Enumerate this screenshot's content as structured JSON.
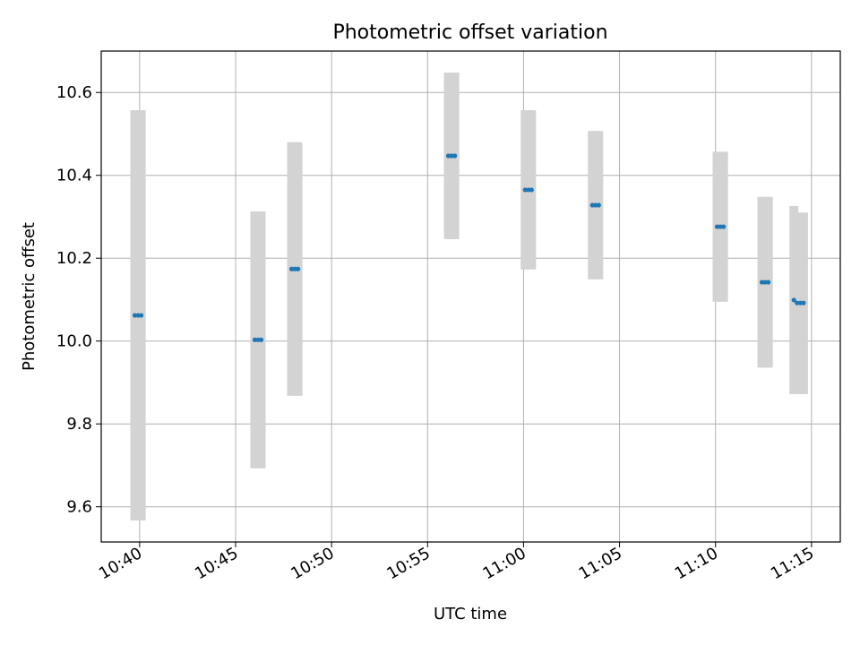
{
  "chart_data": {
    "type": "scatter",
    "title": "Photometric offset variation",
    "xlabel": "UTC time",
    "ylabel": "Photometric offset",
    "xlim": [
      "10:38:00",
      "11:16:30"
    ],
    "ylim": [
      9.515,
      10.7
    ],
    "grid": true,
    "x_ticks": [
      "10:40",
      "10:45",
      "10:50",
      "10:55",
      "11:00",
      "11:05",
      "11:10",
      "11:15"
    ],
    "y_ticks": [
      "9.6",
      "9.8",
      "10.0",
      "10.2",
      "10.4",
      "10.6"
    ],
    "y_tick_values": [
      9.6,
      9.8,
      10.0,
      10.2,
      10.4,
      10.6
    ],
    "error_band_color": "#d3d3d3",
    "point_color": "#1f77b4",
    "groups": [
      {
        "times": [
          "10:39:45",
          "10:39:55",
          "10:40:05"
        ],
        "offset": 10.062,
        "low": 9.567,
        "high": 10.557
      },
      {
        "times": [
          "10:46:00",
          "10:46:10",
          "10:46:20"
        ],
        "offset": 10.003,
        "low": 9.693,
        "high": 10.313
      },
      {
        "times": [
          "10:47:55",
          "10:48:05",
          "10:48:15"
        ],
        "offset": 10.174,
        "low": 9.868,
        "high": 10.48
      },
      {
        "times": [
          "10:56:05",
          "10:56:15",
          "10:56:25"
        ],
        "offset": 10.447,
        "low": 10.246,
        "high": 10.648
      },
      {
        "times": [
          "11:00:05",
          "11:00:15",
          "11:00:25"
        ],
        "offset": 10.365,
        "low": 10.173,
        "high": 10.557
      },
      {
        "times": [
          "11:03:35",
          "11:03:45",
          "11:03:55"
        ],
        "offset": 10.328,
        "low": 10.149,
        "high": 10.507
      },
      {
        "times": [
          "11:10:05",
          "11:10:15",
          "11:10:25"
        ],
        "offset": 10.276,
        "low": 10.095,
        "high": 10.457
      },
      {
        "times": [
          "11:12:25",
          "11:12:35",
          "11:12:45"
        ],
        "offset": 10.142,
        "low": 9.936,
        "high": 10.348
      },
      {
        "times": [
          "11:14:05"
        ],
        "offset": 10.099,
        "low": 9.872,
        "high": 10.326
      },
      {
        "times": [
          "11:14:15",
          "11:14:25",
          "11:14:35"
        ],
        "offset": 10.092,
        "low": 9.872,
        "high": 10.31
      }
    ]
  }
}
